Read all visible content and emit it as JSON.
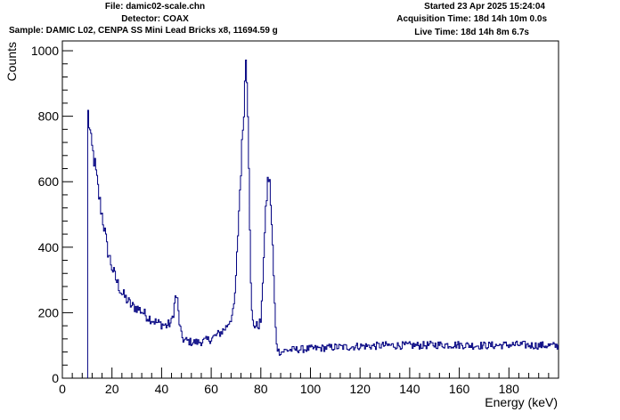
{
  "header": {
    "file": "File: damic02-scale.chn",
    "detector": "Detector: COAX",
    "sample": "Sample: DAMIC L02, CENPA SS Mini Lead Bricks x8, 11694.59 g",
    "started": "Started 23 Apr 2025 15:24:04",
    "acquisition_time": "Acquisition Time: 18d 14h 10m 0.0s",
    "live_time": "Live Time: 18d 14h 8m 6.7s"
  },
  "chart_data": {
    "type": "line",
    "style": "histogram-step",
    "xlabel": "Energy (keV)",
    "ylabel": "Counts",
    "xlim": [
      0,
      200
    ],
    "ylim": [
      0,
      1030
    ],
    "x_ticks": [
      0,
      20,
      40,
      60,
      80,
      100,
      120,
      140,
      160,
      180
    ],
    "y_ticks": [
      0,
      200,
      400,
      600,
      800,
      1000
    ],
    "line_color": "#000080",
    "grid": false,
    "x": [
      10.2,
      10.6,
      11,
      11.5,
      12,
      13,
      14,
      15,
      16,
      17,
      18,
      19,
      20,
      21,
      22,
      24,
      26,
      28,
      30,
      32,
      34,
      36,
      38,
      40,
      42,
      44,
      45,
      45.5,
      46,
      46.5,
      47,
      48,
      49,
      50,
      52,
      55,
      58,
      60,
      62,
      64,
      66,
      68,
      69,
      70,
      71,
      72,
      73,
      73.5,
      74,
      74.5,
      75,
      75.5,
      76,
      76.5,
      77,
      78,
      79,
      80,
      80.5,
      81,
      82,
      82.5,
      83,
      83.5,
      84,
      84.5,
      85,
      85.5,
      86,
      86.5,
      87,
      87.5,
      88,
      88.5,
      89,
      90,
      95,
      100,
      105,
      110,
      115,
      120,
      125,
      130,
      135,
      140,
      145,
      150,
      155,
      160,
      165,
      170,
      175,
      180,
      185,
      190,
      195,
      200
    ],
    "y": [
      830,
      785,
      770,
      720,
      700,
      660,
      600,
      545,
      500,
      455,
      400,
      370,
      340,
      315,
      295,
      260,
      240,
      220,
      215,
      205,
      190,
      180,
      170,
      165,
      160,
      170,
      210,
      245,
      250,
      230,
      180,
      130,
      115,
      115,
      110,
      110,
      115,
      120,
      130,
      140,
      155,
      185,
      200,
      300,
      480,
      640,
      800,
      880,
      980,
      920,
      760,
      520,
      280,
      180,
      165,
      160,
      160,
      175,
      230,
      350,
      500,
      570,
      620,
      600,
      540,
      450,
      360,
      240,
      150,
      100,
      85,
      80,
      80,
      80,
      82,
      85,
      88,
      90,
      92,
      95,
      95,
      98,
      98,
      100,
      100,
      100,
      100,
      102,
      102,
      102,
      100,
      100,
      100,
      102,
      102,
      100,
      100,
      98
    ]
  }
}
